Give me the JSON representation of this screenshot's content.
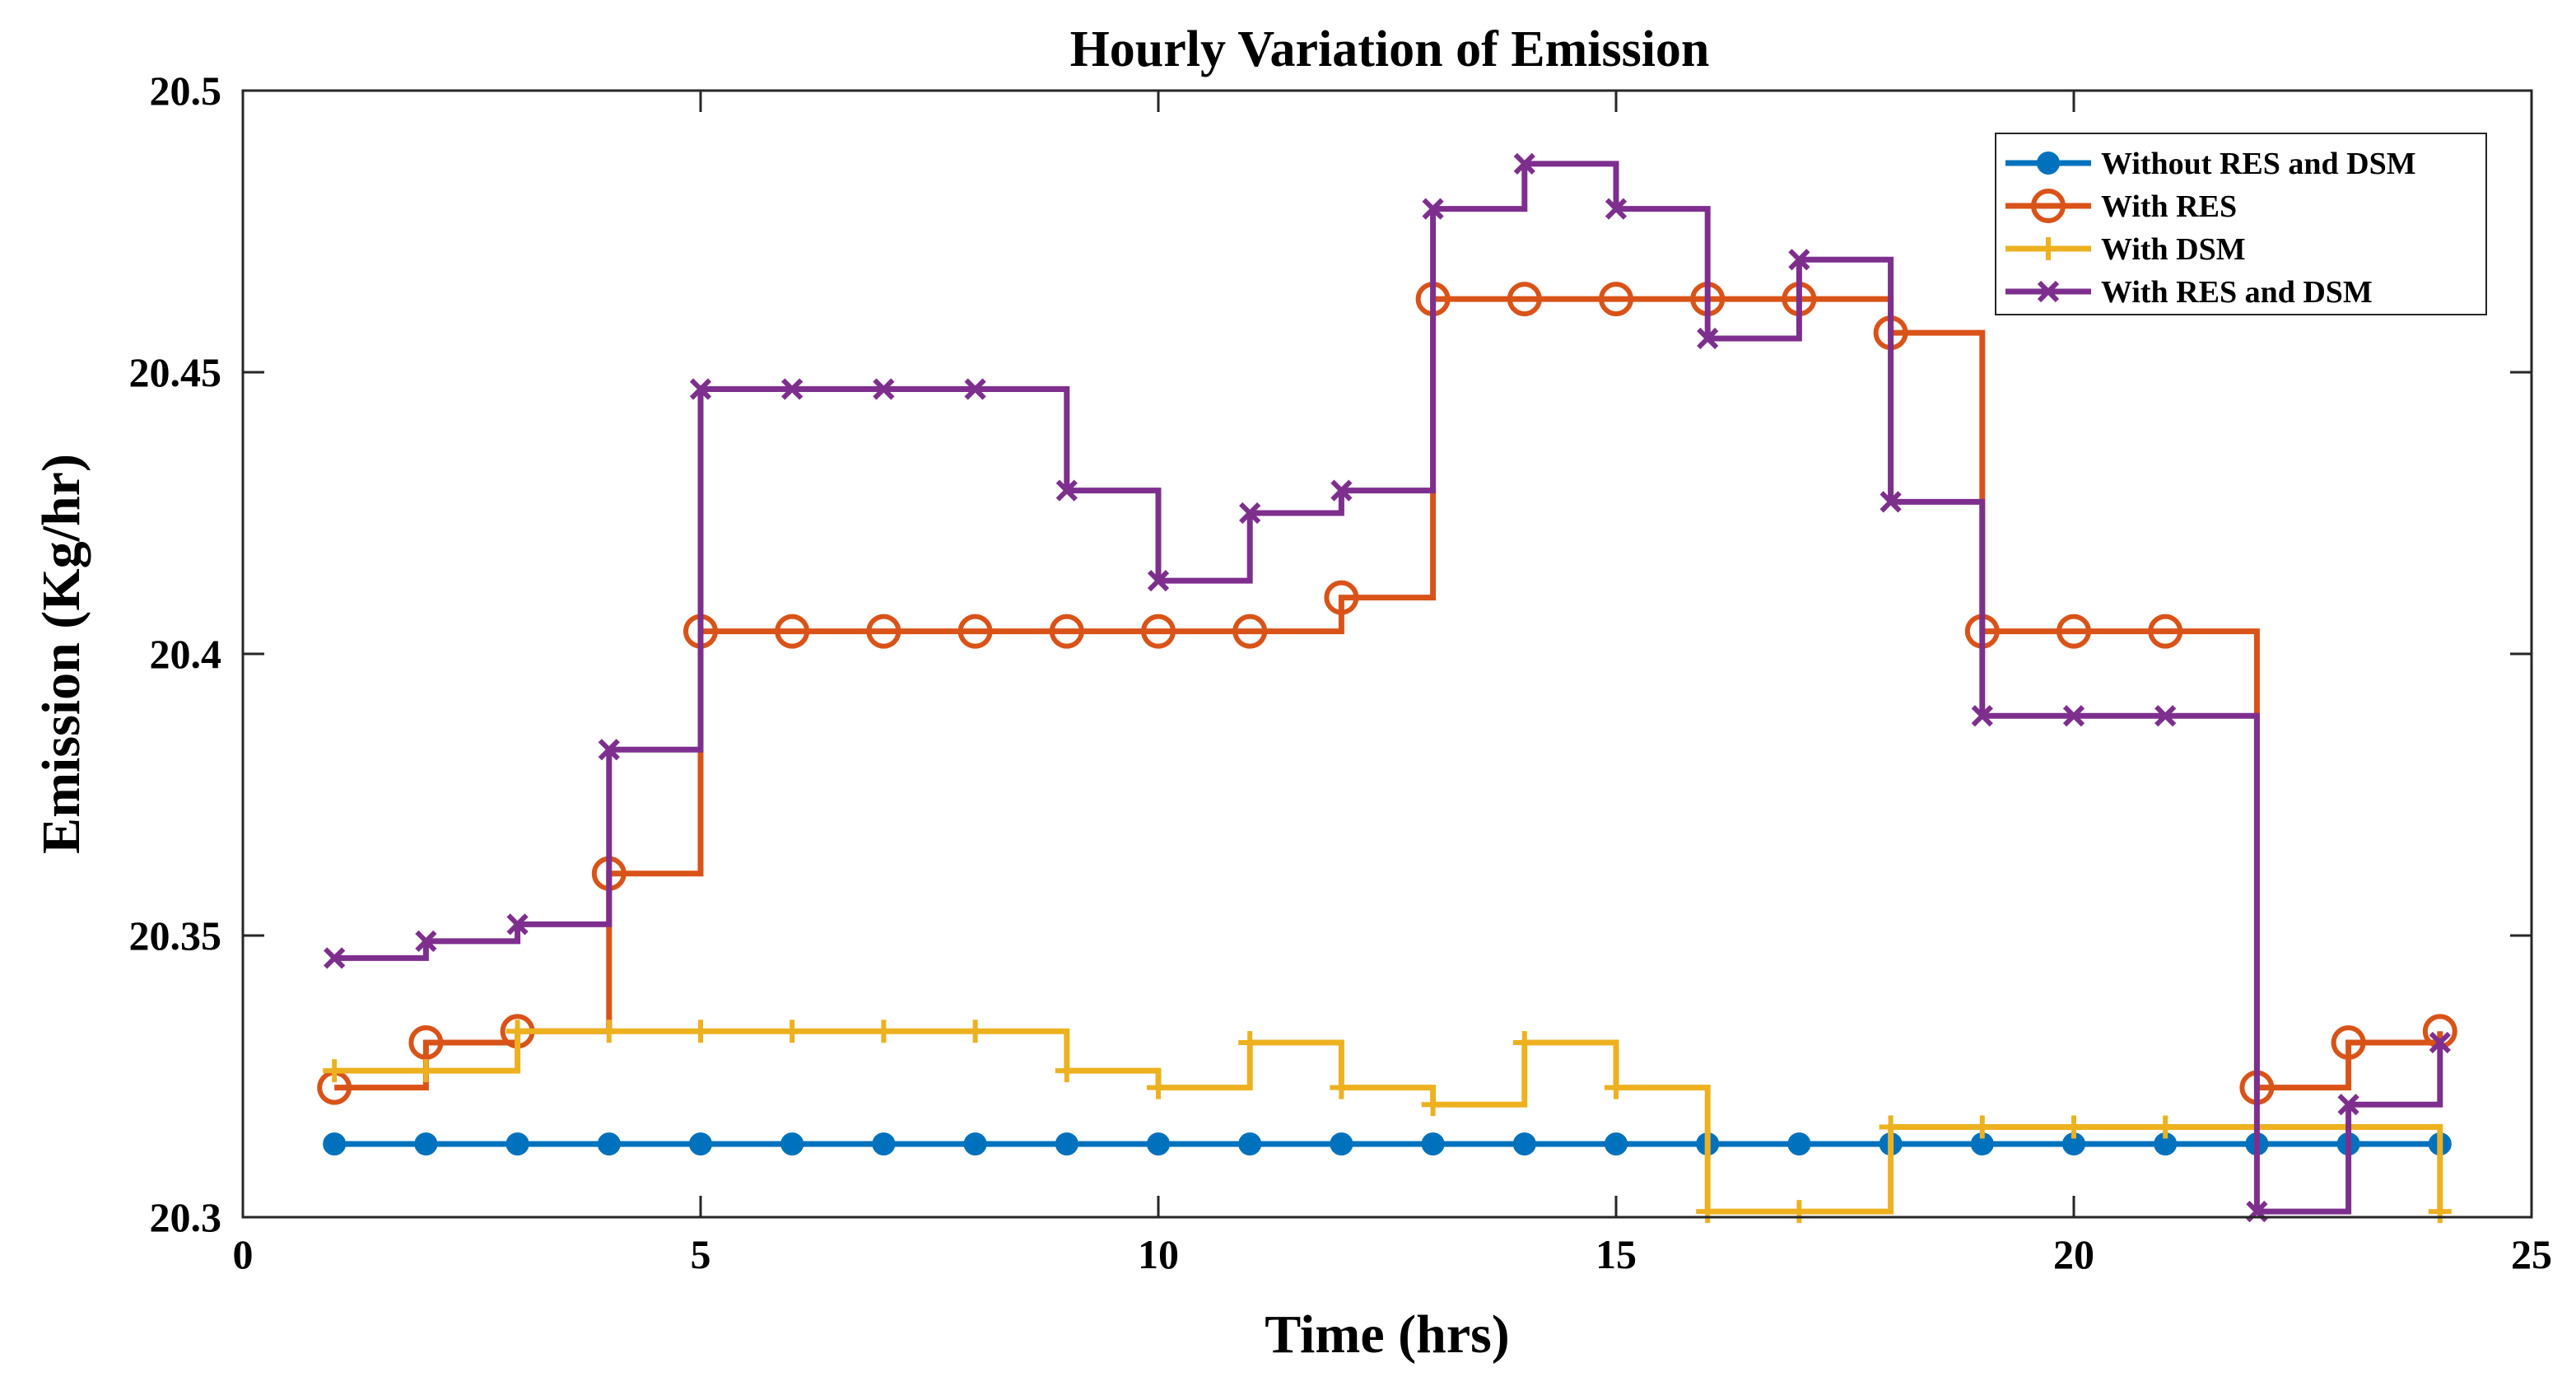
{
  "chart_data": {
    "type": "line",
    "step": true,
    "title": "Hourly Variation of Emission",
    "xlabel": "Time (hrs)",
    "ylabel": "Emission (Kg/hr)",
    "xlim": [
      0,
      25
    ],
    "ylim": [
      20.3,
      20.5
    ],
    "xticks": [
      0,
      5,
      10,
      15,
      20,
      25
    ],
    "xtick_labels": [
      "0",
      "5",
      "10",
      "15",
      "20",
      "25"
    ],
    "yticks": [
      20.3,
      20.35,
      20.4,
      20.45,
      20.5
    ],
    "ytick_labels": [
      "20.3",
      "20.35",
      "20.4",
      "20.45",
      "20.5"
    ],
    "grid": false,
    "legend_position": "top-right",
    "x": [
      1,
      2,
      3,
      4,
      5,
      6,
      7,
      8,
      9,
      10,
      11,
      12,
      13,
      14,
      15,
      16,
      17,
      18,
      19,
      20,
      21,
      22,
      23,
      24
    ],
    "series": [
      {
        "name": "Without RES and DSM",
        "color": "#0072BD",
        "marker": "dot",
        "values": [
          20.313,
          20.313,
          20.313,
          20.313,
          20.313,
          20.313,
          20.313,
          20.313,
          20.313,
          20.313,
          20.313,
          20.313,
          20.313,
          20.313,
          20.313,
          20.313,
          20.313,
          20.313,
          20.313,
          20.313,
          20.313,
          20.313,
          20.313,
          20.313
        ]
      },
      {
        "name": "With RES",
        "color": "#D95319",
        "marker": "circle",
        "values": [
          20.323,
          20.331,
          20.333,
          20.361,
          20.404,
          20.404,
          20.404,
          20.404,
          20.404,
          20.404,
          20.404,
          20.41,
          20.463,
          20.463,
          20.463,
          20.463,
          20.463,
          20.457,
          20.404,
          20.404,
          20.404,
          20.323,
          20.331,
          20.333
        ]
      },
      {
        "name": "With DSM",
        "color": "#EDB120",
        "marker": "plus",
        "values": [
          20.326,
          20.326,
          20.333,
          20.333,
          20.333,
          20.333,
          20.333,
          20.333,
          20.326,
          20.323,
          20.331,
          20.323,
          20.32,
          20.331,
          20.323,
          20.301,
          20.301,
          20.316,
          20.316,
          20.316,
          20.316,
          20.316,
          20.316,
          20.301
        ]
      },
      {
        "name": "With RES and DSM",
        "color": "#7E2F8E",
        "marker": "cross",
        "values": [
          20.346,
          20.349,
          20.352,
          20.383,
          20.447,
          20.447,
          20.447,
          20.447,
          20.429,
          20.413,
          20.425,
          20.429,
          20.479,
          20.487,
          20.479,
          20.456,
          20.47,
          20.427,
          20.389,
          20.389,
          20.389,
          20.301,
          20.32,
          20.331
        ]
      }
    ]
  }
}
